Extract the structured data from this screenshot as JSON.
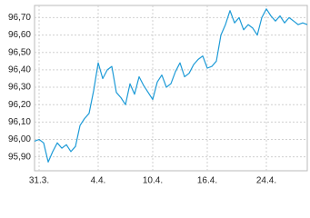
{
  "chart_data": {
    "type": "line",
    "categories": [
      null,
      "31.3.",
      null,
      null,
      null,
      null,
      null,
      null,
      null,
      null,
      null,
      null,
      null,
      null,
      "4.4.",
      null,
      null,
      null,
      null,
      null,
      null,
      null,
      null,
      null,
      null,
      null,
      "10.4.",
      null,
      null,
      null,
      null,
      null,
      null,
      null,
      null,
      null,
      null,
      null,
      "16.4.",
      null,
      null,
      null,
      null,
      null,
      null,
      null,
      null,
      null,
      null,
      null,
      null,
      "24.4.",
      null,
      null,
      null,
      null,
      null,
      null,
      null,
      null,
      null
    ],
    "series": [
      {
        "color": "#1e9bd7",
        "values": [
          95.99,
          96.0,
          95.98,
          95.87,
          95.93,
          95.98,
          95.95,
          95.97,
          95.93,
          95.96,
          96.08,
          96.12,
          96.15,
          96.28,
          96.44,
          96.35,
          96.4,
          96.42,
          96.27,
          96.24,
          96.2,
          96.32,
          96.26,
          96.36,
          96.31,
          96.27,
          96.23,
          96.33,
          96.37,
          96.3,
          96.32,
          96.39,
          96.44,
          96.36,
          96.38,
          96.43,
          96.46,
          96.48,
          96.41,
          96.42,
          96.45,
          96.6,
          96.66,
          96.74,
          96.67,
          96.7,
          96.63,
          96.66,
          96.64,
          96.6,
          96.7,
          96.75,
          96.71,
          96.68,
          96.71,
          96.67,
          96.7,
          96.68,
          96.66,
          96.67,
          96.66
        ]
      }
    ],
    "ylim": [
      95.82,
      96.77
    ],
    "yticks": [
      {
        "value": 95.9,
        "label": "95,90"
      },
      {
        "value": 96.0,
        "label": "96,00"
      },
      {
        "value": 96.1,
        "label": "96,10"
      },
      {
        "value": 96.2,
        "label": "96,20"
      },
      {
        "value": 96.3,
        "label": "96,30"
      },
      {
        "value": 96.4,
        "label": "96,40"
      },
      {
        "value": 96.5,
        "label": "96,50"
      },
      {
        "value": 96.6,
        "label": "96,60"
      },
      {
        "value": 96.7,
        "label": "96,70"
      }
    ],
    "grid": true
  }
}
